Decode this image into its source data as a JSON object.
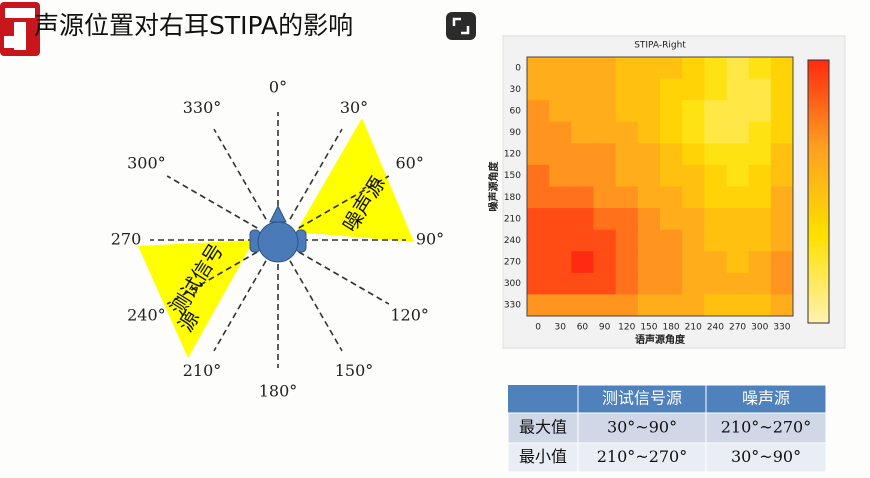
{
  "title": "声源位置对右耳STIPA的影响",
  "diagram": {
    "angles": [
      "0°",
      "30°",
      "60°",
      "90°",
      "120°",
      "150°",
      "180°",
      "210°",
      "240°",
      "270",
      "300°",
      "330°"
    ],
    "noise_label": "噪声源",
    "test_label": [
      "测试信号",
      "源"
    ]
  },
  "chart_data": {
    "type": "heatmap",
    "title": "STIPA-Right",
    "x_label": "语声源角度",
    "y_label": "噪声源角度",
    "x": [
      "0",
      "30",
      "60",
      "90",
      "120",
      "150",
      "180",
      "210",
      "240",
      "270",
      "300",
      "330"
    ],
    "y": [
      "0",
      "30",
      "60",
      "90",
      "120",
      "150",
      "180",
      "210",
      "240",
      "270",
      "300",
      "330"
    ],
    "values": [
      [
        0.6,
        0.6,
        0.6,
        0.6,
        0.5,
        0.5,
        0.5,
        0.4,
        0.3,
        0.2,
        0.3,
        0.4
      ],
      [
        0.6,
        0.6,
        0.6,
        0.6,
        0.5,
        0.5,
        0.4,
        0.4,
        0.3,
        0.2,
        0.2,
        0.4
      ],
      [
        0.7,
        0.6,
        0.6,
        0.6,
        0.5,
        0.5,
        0.4,
        0.3,
        0.2,
        0.2,
        0.2,
        0.4
      ],
      [
        0.7,
        0.7,
        0.6,
        0.6,
        0.6,
        0.5,
        0.4,
        0.3,
        0.2,
        0.2,
        0.3,
        0.4
      ],
      [
        0.7,
        0.7,
        0.7,
        0.7,
        0.6,
        0.6,
        0.5,
        0.4,
        0.3,
        0.3,
        0.3,
        0.5
      ],
      [
        0.8,
        0.7,
        0.7,
        0.7,
        0.6,
        0.6,
        0.5,
        0.5,
        0.4,
        0.3,
        0.4,
        0.5
      ],
      [
        0.8,
        0.8,
        0.8,
        0.7,
        0.7,
        0.6,
        0.6,
        0.5,
        0.4,
        0.4,
        0.4,
        0.6
      ],
      [
        0.9,
        0.9,
        0.9,
        0.8,
        0.8,
        0.7,
        0.6,
        0.6,
        0.5,
        0.5,
        0.5,
        0.6
      ],
      [
        0.9,
        0.9,
        0.9,
        0.9,
        0.8,
        0.7,
        0.7,
        0.6,
        0.5,
        0.5,
        0.5,
        0.6
      ],
      [
        0.9,
        0.9,
        1.0,
        0.9,
        0.8,
        0.7,
        0.7,
        0.6,
        0.6,
        0.5,
        0.6,
        0.7
      ],
      [
        0.9,
        0.9,
        0.9,
        0.9,
        0.8,
        0.7,
        0.7,
        0.6,
        0.6,
        0.6,
        0.6,
        0.7
      ],
      [
        0.7,
        0.7,
        0.7,
        0.7,
        0.7,
        0.6,
        0.6,
        0.6,
        0.5,
        0.5,
        0.5,
        0.6
      ]
    ],
    "colormap": [
      "#fff2b0",
      "#ffe000",
      "#ffa020",
      "#ff2a10"
    ]
  },
  "table": {
    "header": [
      "测试信号源",
      "噪声源"
    ],
    "rows": [
      [
        "最大值",
        "30°~90°",
        "210°~270°"
      ],
      [
        "最小值",
        "210°~270°",
        "30°~90°"
      ]
    ]
  }
}
